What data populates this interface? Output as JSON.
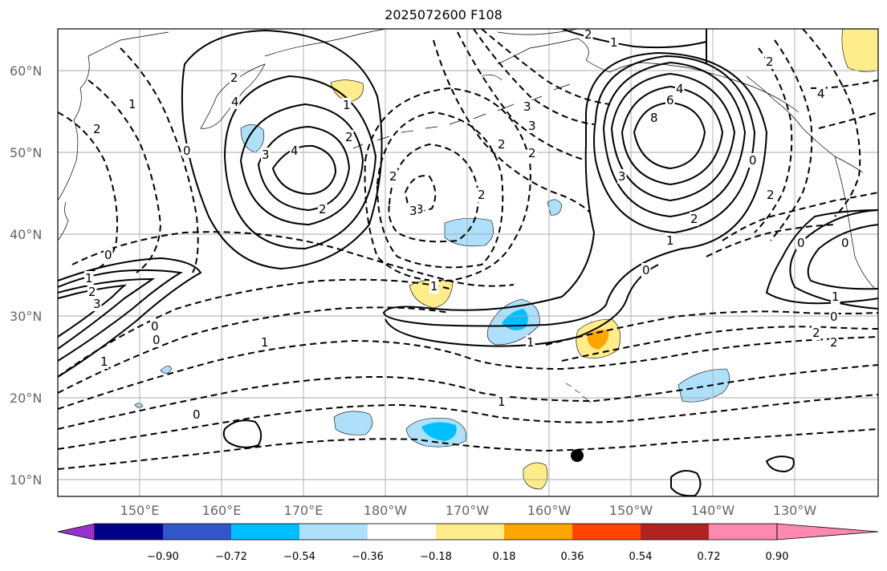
{
  "title": "2025072600 F108",
  "map": {
    "lat_labels": [
      "60°N",
      "50°N",
      "40°N",
      "30°N",
      "20°N",
      "10°N"
    ],
    "lon_labels": [
      "150°E",
      "160°E",
      "170°E",
      "180°W",
      "170°W",
      "160°W",
      "150°W",
      "140°W",
      "130°W"
    ],
    "contour_labels": [
      "2",
      "1",
      "2",
      "3",
      "4",
      "2",
      "0",
      "3",
      "4",
      "1",
      "2",
      "2",
      "3",
      "3",
      "2",
      "2",
      "1",
      "2",
      "3",
      "8",
      "6",
      "4",
      "3",
      "2",
      "0",
      "1",
      "0",
      "4",
      "2",
      "1",
      "0",
      "2",
      "2",
      "1",
      "0",
      "1",
      "2",
      "3",
      "0",
      "0",
      "1",
      "2",
      "0",
      "2",
      "1",
      "1",
      "1",
      "0",
      "0"
    ]
  },
  "colorbar": {
    "ticks": [
      "−0.90",
      "−0.72",
      "−0.54",
      "−0.36",
      "−0.18",
      "0.18",
      "0.36",
      "0.54",
      "0.72",
      "0.90"
    ],
    "colors": [
      "#9932cc",
      "#00008b",
      "#3355cc",
      "#00bfff",
      "#aee0fb",
      "#ffffff",
      "#ffec8b",
      "#ffa500",
      "#ff4500",
      "#b22222",
      "#ff88b0"
    ]
  }
}
